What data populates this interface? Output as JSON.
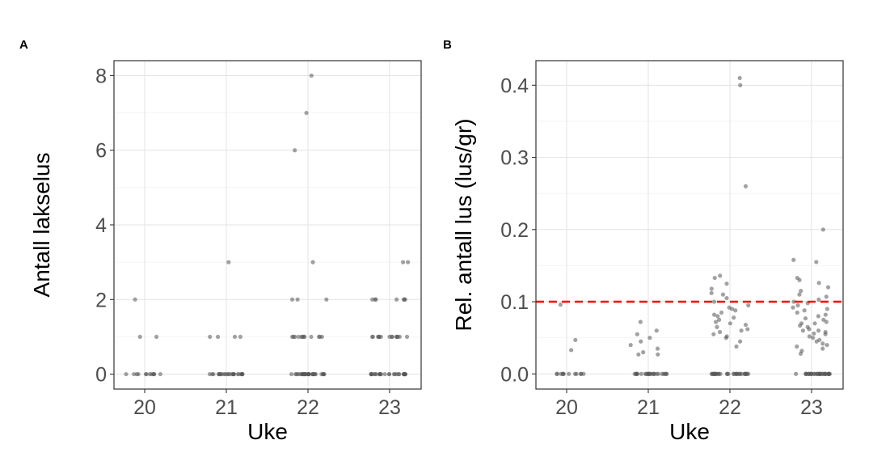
{
  "chart_data": [
    {
      "panel": "A",
      "type": "scatter",
      "title": "",
      "xlabel": "Uke",
      "ylabel": "Antall lakselus",
      "categories": [
        "20",
        "21",
        "22",
        "23"
      ],
      "x_ticks": [
        "20",
        "21",
        "22",
        "23"
      ],
      "y_ticks": [
        "0",
        "2",
        "4",
        "6",
        "8"
      ],
      "ylim": [
        -0.4,
        8.4
      ],
      "grid": true,
      "point_color": "#555555",
      "points": [
        {
          "week": "20",
          "values": [
            0,
            0,
            0,
            0,
            0,
            0,
            0,
            0,
            0,
            0,
            0,
            0,
            1,
            2,
            1
          ]
        },
        {
          "week": "21",
          "values": [
            0,
            0,
            0,
            0,
            0,
            0,
            0,
            0,
            0,
            0,
            0,
            0,
            0,
            0,
            0,
            0,
            0,
            0,
            0,
            0,
            0,
            0,
            0,
            0,
            0,
            1,
            1,
            1,
            1,
            3
          ]
        },
        {
          "week": "22",
          "values": [
            0,
            0,
            0,
            0,
            0,
            0,
            0,
            0,
            0,
            0,
            0,
            0,
            0,
            0,
            0,
            0,
            0,
            0,
            0,
            0,
            0,
            0,
            0,
            0,
            0,
            0,
            0,
            0,
            0,
            0,
            1,
            1,
            1,
            1,
            1,
            1,
            1,
            1,
            1,
            1,
            1,
            1,
            2,
            2,
            2,
            3,
            6,
            7,
            8
          ]
        },
        {
          "week": "23",
          "values": [
            0,
            0,
            0,
            0,
            0,
            0,
            0,
            0,
            0,
            0,
            0,
            0,
            0,
            0,
            0,
            0,
            0,
            0,
            0,
            0,
            0,
            0,
            0,
            0,
            0,
            0,
            0,
            0,
            0,
            0,
            1,
            1,
            1,
            1,
            1,
            1,
            1,
            1,
            1,
            1,
            1,
            1,
            1,
            1,
            2,
            2,
            2,
            2,
            2,
            2,
            2,
            3,
            3
          ]
        }
      ]
    },
    {
      "panel": "B",
      "type": "scatter",
      "title": "",
      "xlabel": "Uke",
      "ylabel": "Rel. antall lus (lus/gr)",
      "categories": [
        "20",
        "21",
        "22",
        "23"
      ],
      "x_ticks": [
        "20",
        "21",
        "22",
        "23"
      ],
      "y_ticks": [
        "0.0",
        "0.1",
        "0.2",
        "0.3",
        "0.4"
      ],
      "ylim": [
        -0.021,
        0.434
      ],
      "grid": true,
      "point_color": "#555555",
      "reference_line": {
        "y": 0.1,
        "color": "#ff0000",
        "style": "dashed"
      },
      "points": [
        {
          "week": "20",
          "values": [
            0,
            0,
            0,
            0,
            0,
            0,
            0,
            0,
            0,
            0,
            0,
            0,
            0.033,
            0.047,
            0.096
          ]
        },
        {
          "week": "21",
          "values": [
            0,
            0,
            0,
            0,
            0,
            0,
            0,
            0,
            0,
            0,
            0,
            0,
            0,
            0,
            0,
            0,
            0,
            0,
            0,
            0,
            0,
            0,
            0,
            0,
            0.027,
            0.03,
            0.035,
            0.04,
            0.045,
            0.05,
            0.055,
            0.06,
            0.072,
            0.027
          ]
        },
        {
          "week": "22",
          "values": [
            0,
            0,
            0,
            0,
            0,
            0,
            0,
            0,
            0,
            0,
            0,
            0,
            0,
            0,
            0,
            0,
            0,
            0,
            0,
            0,
            0,
            0,
            0,
            0,
            0,
            0,
            0,
            0,
            0,
            0,
            0.038,
            0.045,
            0.05,
            0.052,
            0.055,
            0.058,
            0.06,
            0.062,
            0.065,
            0.068,
            0.07,
            0.072,
            0.075,
            0.078,
            0.08,
            0.082,
            0.085,
            0.088,
            0.09,
            0.092,
            0.095,
            0.1,
            0.105,
            0.11,
            0.112,
            0.118,
            0.125,
            0.133,
            0.136,
            0.26,
            0.4,
            0.41
          ]
        },
        {
          "week": "23",
          "values": [
            0,
            0,
            0,
            0,
            0,
            0,
            0,
            0,
            0,
            0,
            0,
            0,
            0,
            0,
            0,
            0,
            0,
            0,
            0,
            0,
            0,
            0,
            0,
            0,
            0,
            0,
            0,
            0,
            0,
            0,
            0.028,
            0.032,
            0.035,
            0.038,
            0.04,
            0.042,
            0.045,
            0.047,
            0.05,
            0.052,
            0.055,
            0.056,
            0.058,
            0.06,
            0.06,
            0.062,
            0.065,
            0.067,
            0.07,
            0.07,
            0.072,
            0.075,
            0.077,
            0.08,
            0.082,
            0.085,
            0.088,
            0.09,
            0.092,
            0.095,
            0.098,
            0.1,
            0.103,
            0.107,
            0.11,
            0.115,
            0.12,
            0.126,
            0.13,
            0.133,
            0.155,
            0.158,
            0.2
          ]
        }
      ]
    }
  ]
}
